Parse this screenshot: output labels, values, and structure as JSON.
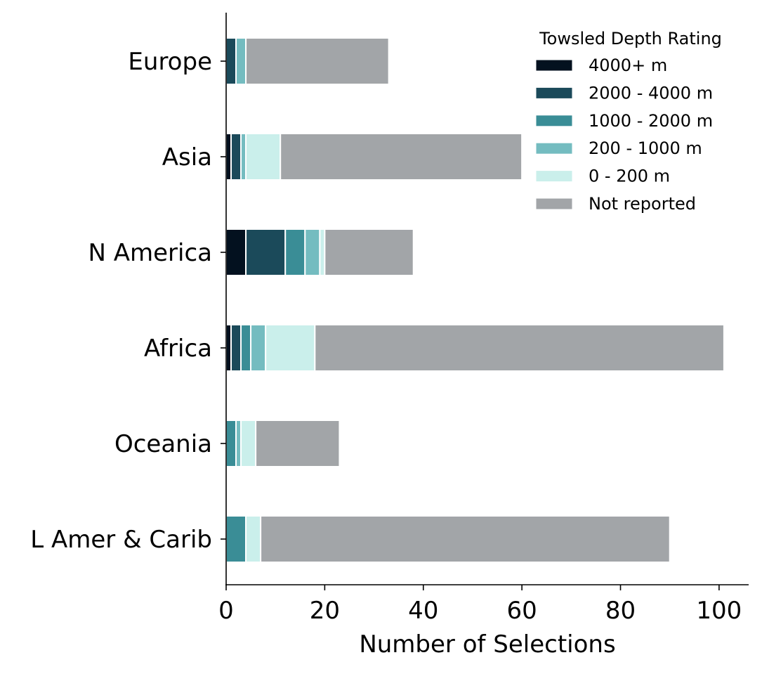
{
  "chart_data": {
    "type": "bar",
    "orientation": "horizontal",
    "stacked": true,
    "title": "",
    "xlabel": "Number of Selections",
    "ylabel": "",
    "xlim": [
      0,
      106
    ],
    "xticks": [
      0,
      20,
      40,
      60,
      80,
      100
    ],
    "grid": false,
    "categories": [
      "Europe",
      "Asia",
      "N America",
      "Africa",
      "Oceania",
      "L Amer & Carib"
    ],
    "legend": {
      "title": "Towsled Depth Rating",
      "placement": "top-right"
    },
    "series": [
      {
        "name": "4000+ m",
        "color": "#03111f",
        "values": [
          0,
          1,
          4,
          1,
          0,
          0
        ]
      },
      {
        "name": "2000 - 4000 m",
        "color": "#1b4a5a",
        "values": [
          2,
          2,
          8,
          2,
          0,
          0
        ]
      },
      {
        "name": "1000 - 2000 m",
        "color": "#3a8d96",
        "values": [
          0,
          0,
          4,
          2,
          2,
          4
        ]
      },
      {
        "name": "200 - 1000 m",
        "color": "#74bcc0",
        "values": [
          2,
          1,
          3,
          3,
          1,
          0
        ]
      },
      {
        "name": "0 - 200 m",
        "color": "#caefeb",
        "values": [
          0,
          7,
          1,
          10,
          3,
          3
        ]
      },
      {
        "name": "Not reported",
        "color": "#a2a5a8",
        "values": [
          29,
          49,
          18,
          83,
          17,
          83
        ]
      }
    ]
  }
}
